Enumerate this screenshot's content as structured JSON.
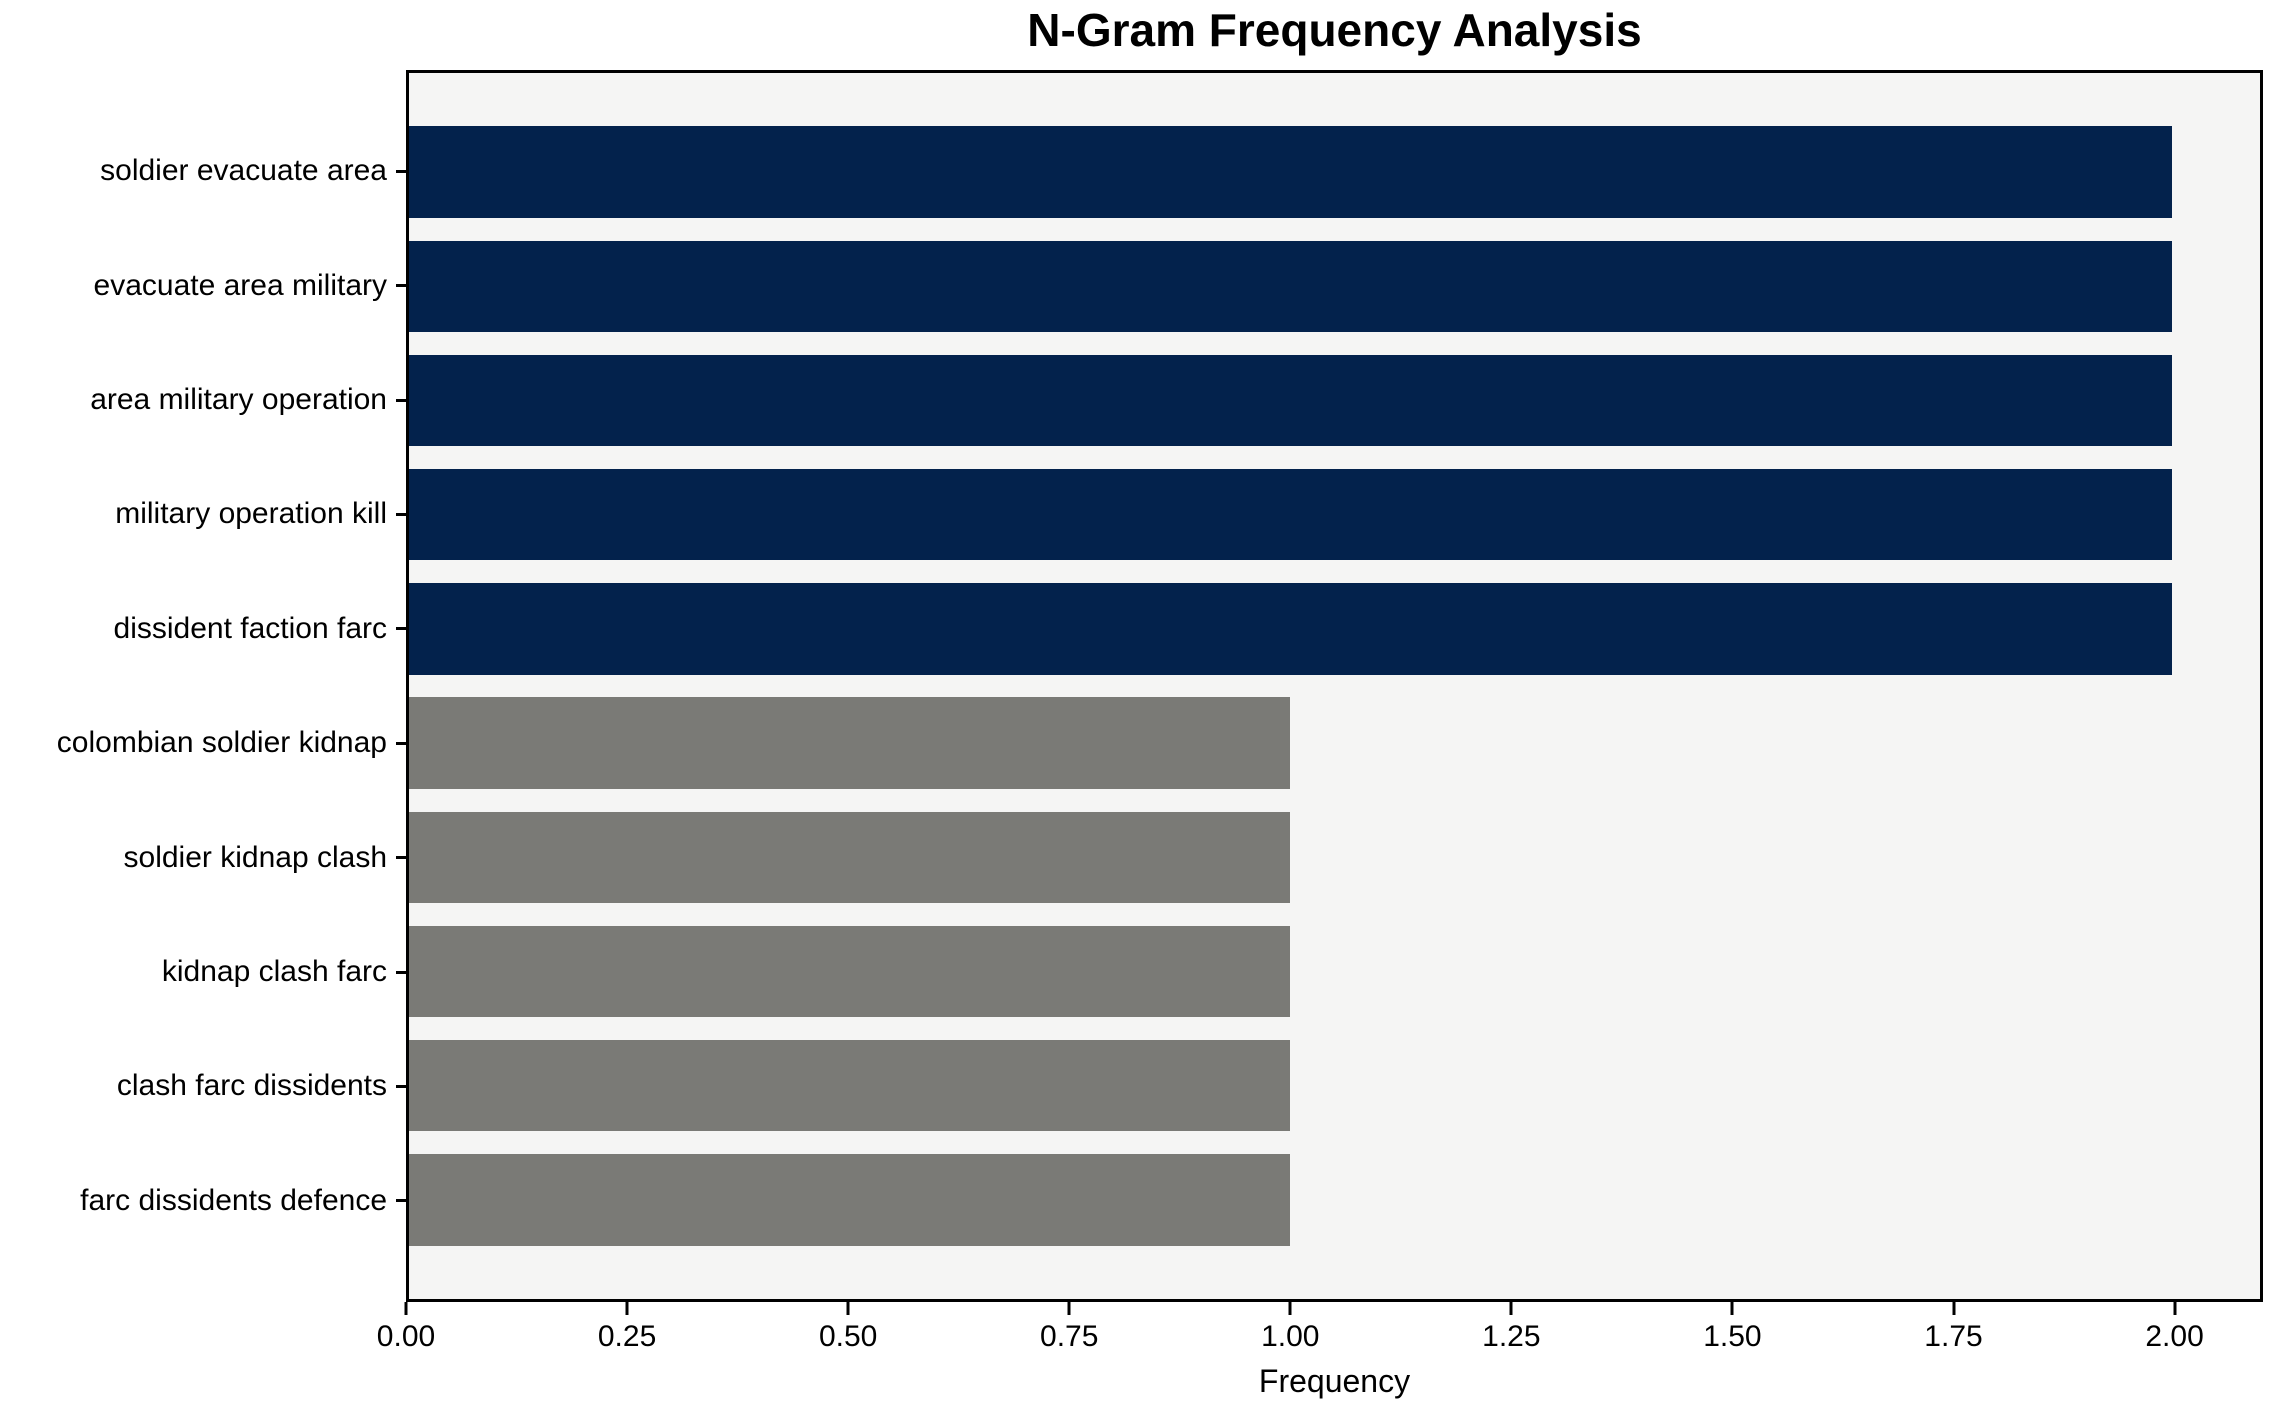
{
  "figure": {
    "background": "#ffffff",
    "plot_background": "#f5f5f4",
    "spine_color": "#000000",
    "navy_color": "#03224c",
    "gray_color": "#7a7a76"
  },
  "chart_data": {
    "type": "bar",
    "orientation": "horizontal",
    "title": "N-Gram Frequency Analysis",
    "xlabel": "Frequency",
    "ylabel": "",
    "categories": [
      "soldier evacuate area",
      "evacuate area military",
      "area military operation",
      "military operation kill",
      "dissident faction farc",
      "colombian soldier kidnap",
      "soldier kidnap clash",
      "kidnap clash farc",
      "clash farc dissidents",
      "farc dissidents defence"
    ],
    "values": [
      2,
      2,
      2,
      2,
      2,
      1,
      1,
      1,
      1,
      1
    ],
    "bar_colors": [
      "#03224c",
      "#03224c",
      "#03224c",
      "#03224c",
      "#03224c",
      "#7a7a76",
      "#7a7a76",
      "#7a7a76",
      "#7a7a76",
      "#7a7a76"
    ],
    "bar_height_fraction": 0.8,
    "xlim": [
      0,
      2.1
    ],
    "xticks": [
      0,
      0.25,
      0.5,
      0.75,
      1.0,
      1.25,
      1.5,
      1.75,
      2.0
    ],
    "xtick_labels": [
      "0.00",
      "0.25",
      "0.50",
      "0.75",
      "1.00",
      "1.25",
      "1.50",
      "1.75",
      "2.00"
    ],
    "grid": false,
    "legend_position": "none"
  }
}
